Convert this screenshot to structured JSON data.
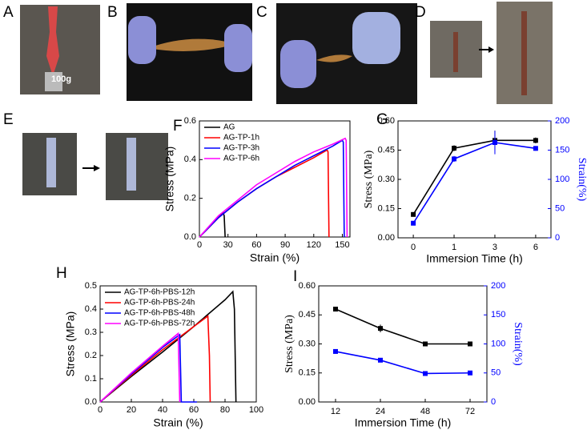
{
  "panel_labels": [
    "A",
    "B",
    "C",
    "D",
    "E",
    "F",
    "G",
    "H",
    "I"
  ],
  "photo_text": "100g",
  "chart_data": [
    {
      "type": "line",
      "x_label": "Strain (%)",
      "y_label": "Stress (MPa)",
      "xlim": [
        0,
        158
      ],
      "xticks": [
        0,
        30,
        60,
        90,
        120,
        150
      ],
      "ylim": [
        0,
        0.6
      ],
      "yticks": [
        {
          "value": 0,
          "label": "0.0"
        },
        0.2,
        0.4,
        0.6
      ],
      "legend": "upper left",
      "series": [
        {
          "name": "AG",
          "color": "#000000",
          "x": [
            0,
            5,
            10,
            15,
            20,
            25,
            26,
            27
          ],
          "values": [
            0,
            0.025,
            0.05,
            0.075,
            0.1,
            0.125,
            0.11,
            0
          ]
        },
        {
          "name": "AG-TP-1h",
          "color": "#ff0000",
          "x": [
            0,
            20,
            40,
            60,
            80,
            100,
            120,
            134,
            135,
            136
          ],
          "values": [
            0,
            0.1,
            0.18,
            0.25,
            0.31,
            0.36,
            0.41,
            0.45,
            0.44,
            0
          ]
        },
        {
          "name": "AG-TP-3h",
          "color": "#0000ff",
          "x": [
            0,
            20,
            40,
            60,
            80,
            100,
            120,
            140,
            150,
            151,
            152
          ],
          "values": [
            0,
            0.1,
            0.18,
            0.25,
            0.31,
            0.37,
            0.42,
            0.47,
            0.5,
            0.49,
            0
          ]
        },
        {
          "name": "AG-TP-6h",
          "color": "#ff00ff",
          "x": [
            0,
            20,
            40,
            60,
            80,
            100,
            120,
            140,
            153,
            154,
            155
          ],
          "values": [
            0,
            0.11,
            0.19,
            0.27,
            0.33,
            0.39,
            0.44,
            0.48,
            0.51,
            0.5,
            0
          ]
        }
      ]
    },
    {
      "type": "dual_line",
      "x_label": "Immersion Time (h)",
      "y_label": "Stress (MPa)",
      "y2_label": "Strain(%)",
      "categories": [
        "0",
        "1",
        "3",
        "6"
      ],
      "ylim": [
        0,
        0.6
      ],
      "yticks": [
        {
          "value": 0,
          "label": "0.00"
        },
        {
          "value": 0.15,
          "label": "0.15"
        },
        {
          "value": 0.3,
          "label": "0.30"
        },
        {
          "value": 0.45,
          "label": "0.45"
        },
        {
          "value": 0.6,
          "label": "0.60"
        }
      ],
      "y2lim": [
        0,
        200
      ],
      "y2ticks": [
        0,
        50,
        100,
        150,
        200
      ],
      "y2color": "#0000ff",
      "series": [
        {
          "color": "#000000",
          "values": [
            0.12,
            0.46,
            0.5,
            0.5
          ],
          "errors": [
            0.005,
            0.015,
            0.05,
            0.015
          ]
        },
        {
          "color": "#0000ff",
          "axis": "y2",
          "values": [
            25,
            135,
            163,
            153
          ],
          "errors": [
            2,
            5,
            20,
            4
          ]
        }
      ]
    },
    {
      "type": "line",
      "x_label": "Strain (%)",
      "y_label": "Stress (MPa)",
      "xlim": [
        0,
        100
      ],
      "xticks": [
        0,
        20,
        40,
        60,
        80,
        100
      ],
      "ylim": [
        0,
        0.5
      ],
      "yticks": [
        {
          "value": 0,
          "label": "0.0"
        },
        0.1,
        0.2,
        0.3,
        0.4,
        0.5
      ],
      "legend": "upper left",
      "series": [
        {
          "name": "AG-TP-6h-PBS-12h",
          "color": "#000000",
          "x": [
            0,
            20,
            40,
            60,
            80,
            85,
            86,
            87
          ],
          "values": [
            0,
            0.11,
            0.215,
            0.325,
            0.44,
            0.475,
            0.4,
            0
          ]
        },
        {
          "name": "AG-TP-6h-PBS-24h",
          "color": "#ff0000",
          "x": [
            0,
            20,
            40,
            60,
            69,
            70,
            70.5
          ],
          "values": [
            0,
            0.115,
            0.225,
            0.325,
            0.37,
            0.2,
            0
          ]
        },
        {
          "name": "AG-TP-6h-PBS-48h",
          "color": "#0000ff",
          "x": [
            0,
            20,
            40,
            51,
            51.5,
            52,
            62
          ],
          "values": [
            0,
            0.12,
            0.235,
            0.29,
            0.15,
            0,
            0
          ]
        },
        {
          "name": "AG-TP-6h-PBS-72h",
          "color": "#ff00ff",
          "x": [
            0,
            20,
            40,
            50,
            50.5,
            51
          ],
          "values": [
            0,
            0.125,
            0.24,
            0.295,
            0.15,
            0
          ]
        }
      ]
    },
    {
      "type": "dual_line",
      "x_label": "Immersion Time (h)",
      "y_label": "Stress (MPa)",
      "y2_label": "Strain(%)",
      "categories": [
        "12",
        "24",
        "48",
        "72"
      ],
      "ylim": [
        0,
        0.6
      ],
      "yticks": [
        {
          "value": 0,
          "label": "0.00"
        },
        {
          "value": 0.15,
          "label": "0.15"
        },
        {
          "value": 0.3,
          "label": "0.30"
        },
        {
          "value": 0.45,
          "label": "0.45"
        },
        {
          "value": 0.6,
          "label": "0.60"
        }
      ],
      "y2lim": [
        0,
        200
      ],
      "y2ticks": [
        0,
        50,
        100,
        150,
        200
      ],
      "y2color": "#0000ff",
      "series": [
        {
          "color": "#000000",
          "values": [
            0.48,
            0.38,
            0.3,
            0.3
          ],
          "errors": [
            0.01,
            0.02,
            0.01,
            0.01
          ]
        },
        {
          "color": "#0000ff",
          "axis": "y2",
          "values": [
            87,
            72,
            49,
            50
          ],
          "errors": [
            2,
            2,
            2,
            2
          ]
        }
      ]
    }
  ]
}
